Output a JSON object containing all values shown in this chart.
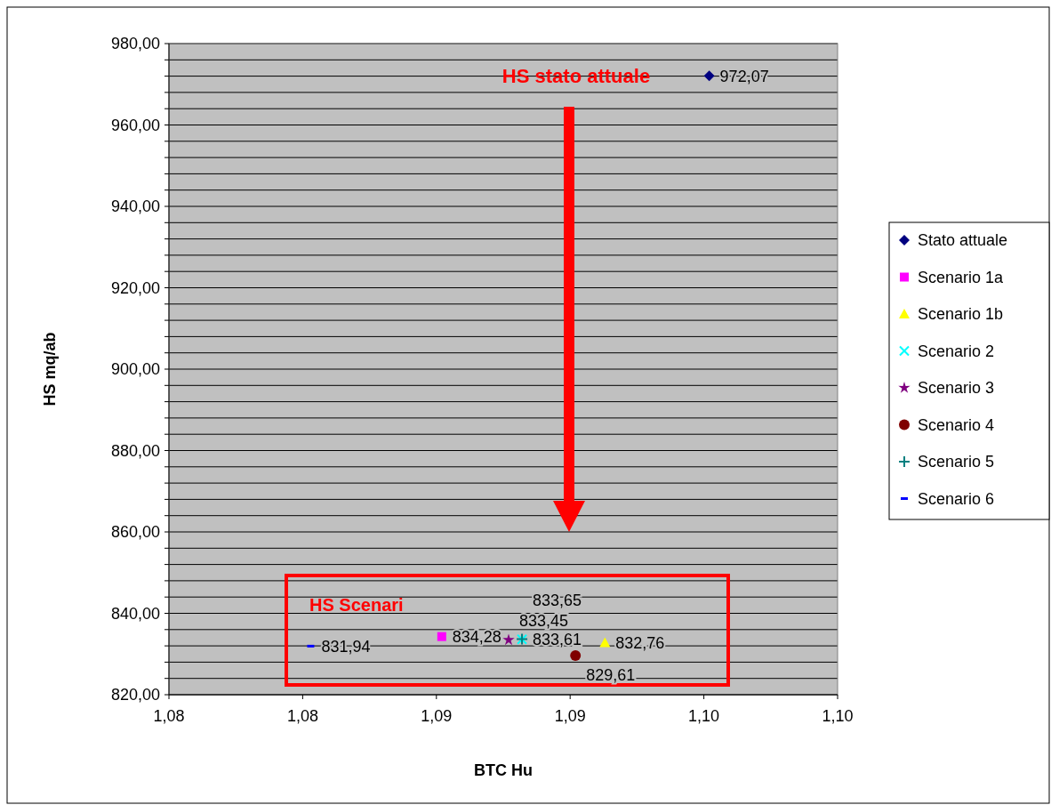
{
  "chart_data": {
    "type": "scatter",
    "xlabel": "BTC Hu",
    "ylabel": "HS mq/ab",
    "xlim": [
      1.075,
      1.1
    ],
    "xticks": [
      {
        "value": 1.075,
        "label": "1,08"
      },
      {
        "value": 1.08,
        "label": "1,08"
      },
      {
        "value": 1.085,
        "label": "1,09"
      },
      {
        "value": 1.09,
        "label": "1,09"
      },
      {
        "value": 1.095,
        "label": "1,10"
      },
      {
        "value": 1.1,
        "label": "1,10"
      }
    ],
    "ylim": [
      820,
      980
    ],
    "yticks": [
      {
        "value": 820,
        "label": "820,00"
      },
      {
        "value": 824,
        "label": null
      },
      {
        "value": 828,
        "label": null
      },
      {
        "value": 832,
        "label": null
      },
      {
        "value": 836,
        "label": null
      },
      {
        "value": 840,
        "label": "840,00"
      },
      {
        "value": 844,
        "label": null
      },
      {
        "value": 848,
        "label": null
      },
      {
        "value": 852,
        "label": null
      },
      {
        "value": 856,
        "label": null
      },
      {
        "value": 860,
        "label": "860,00"
      },
      {
        "value": 864,
        "label": null
      },
      {
        "value": 868,
        "label": null
      },
      {
        "value": 872,
        "label": null
      },
      {
        "value": 876,
        "label": null
      },
      {
        "value": 880,
        "label": "880,00"
      },
      {
        "value": 884,
        "label": null
      },
      {
        "value": 888,
        "label": null
      },
      {
        "value": 892,
        "label": null
      },
      {
        "value": 896,
        "label": null
      },
      {
        "value": 900,
        "label": "900,00"
      },
      {
        "value": 904,
        "label": null
      },
      {
        "value": 908,
        "label": null
      },
      {
        "value": 912,
        "label": null
      },
      {
        "value": 916,
        "label": null
      },
      {
        "value": 920,
        "label": "920,00"
      },
      {
        "value": 924,
        "label": null
      },
      {
        "value": 928,
        "label": null
      },
      {
        "value": 932,
        "label": null
      },
      {
        "value": 936,
        "label": null
      },
      {
        "value": 940,
        "label": "940,00"
      },
      {
        "value": 944,
        "label": null
      },
      {
        "value": 948,
        "label": null
      },
      {
        "value": 952,
        "label": null
      },
      {
        "value": 956,
        "label": null
      },
      {
        "value": 960,
        "label": "960,00"
      },
      {
        "value": 964,
        "label": null
      },
      {
        "value": 968,
        "label": null
      },
      {
        "value": 972,
        "label": null
      },
      {
        "value": 976,
        "label": null
      },
      {
        "value": 980,
        "label": "980,00"
      }
    ],
    "grid": "y",
    "legend": "right",
    "annotations": [
      "HS stato attuale",
      "HS Scenari"
    ],
    "series": [
      {
        "name": "Stato attuale",
        "color": "#000080",
        "marker": "diamond",
        "x": [
          1.0952
        ],
        "values": [
          972.07
        ],
        "value_labels": [
          "972,07"
        ]
      },
      {
        "name": "Scenario 1a",
        "color": "#ff00ff",
        "marker": "square",
        "x": [
          1.0852
        ],
        "values": [
          834.28
        ],
        "value_labels": [
          "834,28"
        ]
      },
      {
        "name": "Scenario 1b",
        "color": "#ffff00",
        "marker": "triangle",
        "x": [
          1.0913
        ],
        "values": [
          832.76
        ],
        "value_labels": [
          "832,76"
        ]
      },
      {
        "name": "Scenario 2",
        "color": "#00ffff",
        "marker": "cross",
        "x": [
          1.0882
        ],
        "values": [
          833.61
        ],
        "value_labels": [
          "833,61"
        ]
      },
      {
        "name": "Scenario 3",
        "color": "#800080",
        "marker": "star",
        "x": [
          1.0877
        ],
        "values": [
          833.45
        ],
        "value_labels": [
          "833,45"
        ]
      },
      {
        "name": "Scenario 4",
        "color": "#800000",
        "marker": "circle",
        "x": [
          1.0902
        ],
        "values": [
          829.61
        ],
        "value_labels": [
          "829,61"
        ]
      },
      {
        "name": "Scenario 5",
        "color": "#008080",
        "marker": "plus",
        "x": [
          1.0882
        ],
        "values": [
          833.65
        ],
        "value_labels": [
          "833,65"
        ]
      },
      {
        "name": "Scenario 6",
        "color": "#0000ff",
        "x": [
          1.0803
        ],
        "values": [
          831.94
        ],
        "value_labels": [
          "831,94"
        ]
      }
    ]
  }
}
